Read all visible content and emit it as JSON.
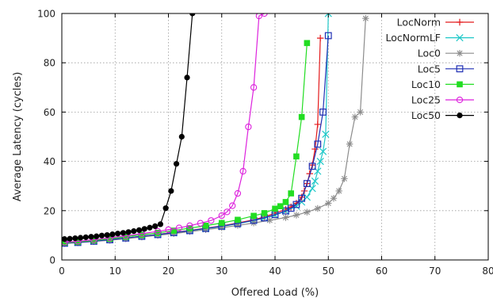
{
  "chart_data": {
    "type": "line",
    "title": "",
    "xlabel": "Offered Load (%)",
    "ylabel": "Average Latency (cycles)",
    "xlim": [
      0,
      80
    ],
    "ylim": [
      0,
      100
    ],
    "xticks": [
      "0",
      "10",
      "20",
      "30",
      "40",
      "50",
      "60",
      "70",
      "80"
    ],
    "yticks": [
      "0",
      "20",
      "40",
      "60",
      "80",
      "100"
    ],
    "grid": true,
    "legend_position": "top-right",
    "series": [
      {
        "name": "LocNorm",
        "color": "#e41a1c",
        "marker": "plus",
        "x": [
          0.5,
          3,
          6,
          9,
          12,
          15,
          18,
          21,
          24,
          27,
          30,
          33,
          36,
          38,
          40,
          42,
          43,
          44,
          45,
          45.5,
          46,
          46.5,
          47,
          47.5,
          48,
          48.5
        ],
        "y": [
          6.8,
          7.1,
          7.6,
          8.2,
          8.9,
          9.6,
          10.4,
          11.2,
          12,
          12.9,
          13.8,
          15,
          16.3,
          17.5,
          19,
          20.5,
          21.5,
          23,
          25.5,
          28,
          31,
          35,
          38.5,
          45,
          55,
          90
        ]
      },
      {
        "name": "LocNormLF",
        "color": "#1ec8c8",
        "marker": "cross",
        "x": [
          0.5,
          3,
          6,
          9,
          12,
          15,
          18,
          21,
          24,
          27,
          30,
          33,
          36,
          38,
          40,
          42,
          44,
          45,
          46,
          47,
          47.5,
          48,
          48.5,
          49,
          49.5,
          50
        ],
        "y": [
          6.8,
          7.1,
          7.6,
          8.2,
          8.9,
          9.6,
          10.3,
          11,
          11.9,
          12.7,
          13.6,
          14.7,
          16,
          17,
          18.2,
          19.8,
          21.8,
          23.5,
          25.5,
          29,
          32,
          36,
          40,
          44,
          51,
          100
        ]
      },
      {
        "name": "Loc0",
        "color": "#8c8c8c",
        "marker": "star",
        "x": [
          0.5,
          3,
          6,
          9,
          12,
          15,
          18,
          21,
          24,
          27,
          30,
          33,
          36,
          39,
          42,
          44,
          46,
          48,
          50,
          51,
          52,
          53,
          54,
          55,
          56,
          57
        ],
        "y": [
          6.7,
          7,
          7.5,
          8,
          8.6,
          9.3,
          10,
          10.7,
          11.5,
          12.3,
          13.1,
          14,
          15,
          16.1,
          17.2,
          18.2,
          19.4,
          20.9,
          23,
          25,
          28,
          33,
          47,
          58,
          60,
          98
        ]
      },
      {
        "name": "Loc5",
        "color": "#1f2fb4",
        "marker": "square",
        "x": [
          0.5,
          3,
          6,
          9,
          12,
          15,
          18,
          21,
          24,
          27,
          30,
          33,
          36,
          38,
          40,
          42,
          43,
          44,
          45,
          46,
          47,
          48,
          49,
          50
        ],
        "y": [
          6.8,
          7.1,
          7.6,
          8.2,
          8.9,
          9.6,
          10.3,
          11.1,
          11.9,
          12.8,
          13.7,
          14.8,
          16.1,
          17.1,
          18.4,
          19.9,
          21,
          22.5,
          25,
          31,
          38,
          47,
          60,
          91
        ]
      },
      {
        "name": "Loc10",
        "color": "#22dd22",
        "marker": "filled-square",
        "x": [
          0.5,
          3,
          6,
          9,
          12,
          15,
          18,
          21,
          24,
          27,
          30,
          33,
          36,
          38,
          40,
          41,
          42,
          43,
          44,
          45,
          46
        ],
        "y": [
          7,
          7.3,
          7.9,
          8.6,
          9.4,
          10.2,
          11,
          11.9,
          12.9,
          13.9,
          15,
          16.3,
          17.9,
          19,
          20.8,
          21.8,
          23.5,
          27,
          42,
          58,
          88
        ]
      },
      {
        "name": "Loc25",
        "color": "#dd22dd",
        "marker": "circle",
        "x": [
          0.5,
          3,
          6,
          9,
          12,
          15,
          18,
          20,
          22,
          24,
          26,
          28,
          30,
          31,
          32,
          33,
          34,
          35,
          36,
          37,
          38
        ],
        "y": [
          7.2,
          7.6,
          8.2,
          9,
          9.8,
          10.7,
          11.6,
          12.3,
          13,
          13.9,
          14.9,
          16,
          18,
          19.5,
          22,
          27,
          36,
          54,
          70,
          99,
          100
        ]
      },
      {
        "name": "Loc50",
        "color": "#000000",
        "marker": "filled-circle",
        "x": [
          0.5,
          1.5,
          2.5,
          3.5,
          4.5,
          5.5,
          6.5,
          7.5,
          8.5,
          9.5,
          10.5,
          11.5,
          12.5,
          13.5,
          14.5,
          15.5,
          16.5,
          17.5,
          18.5,
          19.5,
          20.5,
          21.5,
          22.5,
          23.5,
          24.5
        ],
        "y": [
          8.5,
          8.6,
          8.8,
          9,
          9.2,
          9.4,
          9.6,
          9.9,
          10.1,
          10.4,
          10.7,
          11,
          11.3,
          11.7,
          12.1,
          12.6,
          13.1,
          13.7,
          14.5,
          21,
          28,
          39,
          50,
          74,
          100
        ]
      }
    ]
  }
}
